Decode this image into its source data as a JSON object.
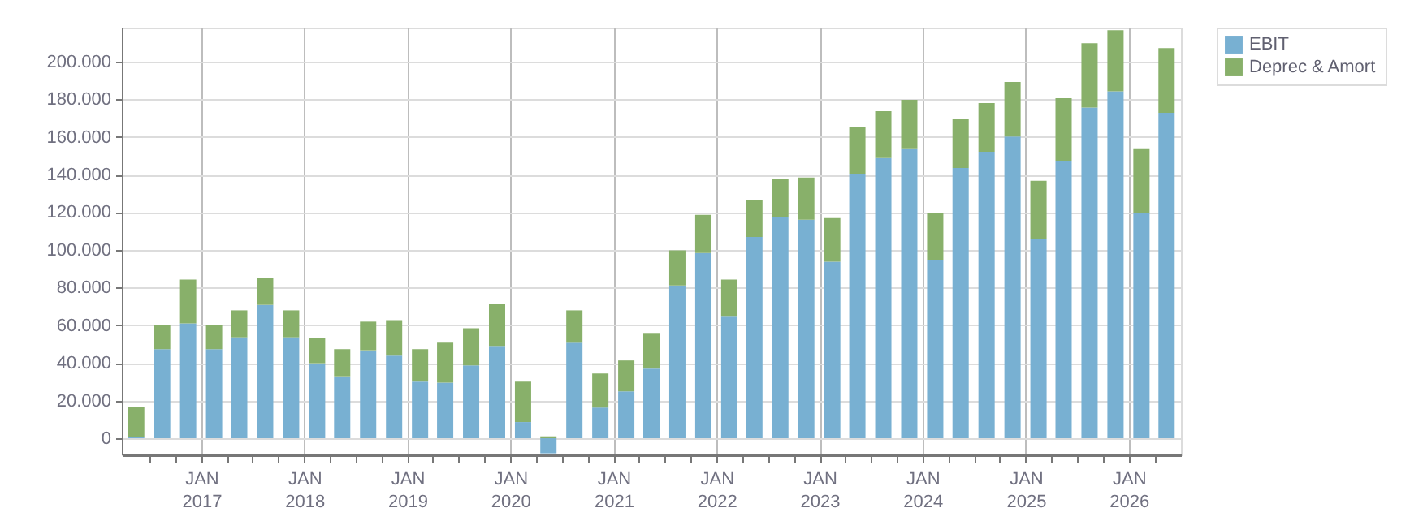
{
  "chart_data": {
    "type": "bar",
    "stacked": true,
    "grid": true,
    "legend": "top right",
    "x": [
      "2016-05-15",
      "2016-08-15",
      "2016-11-15",
      "2017-02-15",
      "2017-05-15",
      "2017-08-15",
      "2017-11-15",
      "2018-02-15",
      "2018-05-15",
      "2018-08-15",
      "2018-11-15",
      "2019-02-15",
      "2019-05-15",
      "2019-08-15",
      "2019-11-15",
      "2020-02-15",
      "2020-05-15",
      "2020-08-15",
      "2020-11-15",
      "2021-02-15",
      "2021-05-15",
      "2021-08-15",
      "2021-11-15",
      "2022-02-15",
      "2022-05-15",
      "2022-08-15",
      "2022-11-15",
      "2023-02-15",
      "2023-05-15",
      "2023-08-15",
      "2023-11-15",
      "2024-02-15",
      "2024-05-15",
      "2024-08-15",
      "2024-11-15",
      "2025-02-15",
      "2025-05-15",
      "2025-08-15",
      "2025-11-15",
      "2026-02-15",
      "2026-05-15"
    ],
    "xlim": [
      "2016-03-25",
      "2026-07-05"
    ],
    "xticks": [
      {
        "value": "2016-07-01",
        "label": null
      },
      {
        "value": "2016-10-01",
        "label": null
      },
      {
        "value": "2017-01-01",
        "label": "JAN 2017"
      },
      {
        "value": "2017-04-01",
        "label": null
      },
      {
        "value": "2017-07-01",
        "label": null
      },
      {
        "value": "2017-10-01",
        "label": null
      },
      {
        "value": "2018-01-01",
        "label": "JAN 2018"
      },
      {
        "value": "2018-04-01",
        "label": null
      },
      {
        "value": "2018-07-01",
        "label": null
      },
      {
        "value": "2018-10-01",
        "label": null
      },
      {
        "value": "2019-01-01",
        "label": "JAN 2019"
      },
      {
        "value": "2019-04-01",
        "label": null
      },
      {
        "value": "2019-07-01",
        "label": null
      },
      {
        "value": "2019-10-01",
        "label": null
      },
      {
        "value": "2020-01-01",
        "label": "JAN 2020"
      },
      {
        "value": "2020-04-01",
        "label": null
      },
      {
        "value": "2020-07-01",
        "label": null
      },
      {
        "value": "2020-10-01",
        "label": null
      },
      {
        "value": "2021-01-01",
        "label": "JAN 2021"
      },
      {
        "value": "2021-04-01",
        "label": null
      },
      {
        "value": "2021-07-01",
        "label": null
      },
      {
        "value": "2021-10-01",
        "label": null
      },
      {
        "value": "2022-01-01",
        "label": "JAN 2022"
      },
      {
        "value": "2022-04-01",
        "label": null
      },
      {
        "value": "2022-07-01",
        "label": null
      },
      {
        "value": "2022-10-01",
        "label": null
      },
      {
        "value": "2023-01-01",
        "label": "JAN 2023"
      },
      {
        "value": "2023-04-01",
        "label": null
      },
      {
        "value": "2023-07-01",
        "label": null
      },
      {
        "value": "2023-10-01",
        "label": null
      },
      {
        "value": "2024-01-01",
        "label": "JAN 2024"
      },
      {
        "value": "2024-04-01",
        "label": null
      },
      {
        "value": "2024-07-01",
        "label": null
      },
      {
        "value": "2024-10-01",
        "label": null
      },
      {
        "value": "2025-01-01",
        "label": "JAN 2025"
      },
      {
        "value": "2025-04-01",
        "label": null
      },
      {
        "value": "2025-07-01",
        "label": null
      },
      {
        "value": "2025-10-01",
        "label": null
      },
      {
        "value": "2026-01-01",
        "label": "JAN 2026"
      },
      {
        "value": "2026-04-01",
        "label": null
      }
    ],
    "ylim": [
      -8600,
      218000
    ],
    "yticks": [
      0,
      {
        "value": 20000,
        "label": "20.000"
      },
      {
        "value": 40000,
        "label": "40.000"
      },
      {
        "value": 60000,
        "label": "60.000"
      },
      {
        "value": 80000,
        "label": "80.000"
      },
      {
        "value": 100000,
        "label": "100.000"
      },
      {
        "value": 120000,
        "label": "120.000"
      },
      {
        "value": 140000,
        "label": "140.000"
      },
      {
        "value": 160000,
        "label": "160.000"
      },
      {
        "value": 180000,
        "label": "180.000"
      },
      {
        "value": 200000,
        "label": "200.000"
      }
    ],
    "series": [
      {
        "name": "EBIT",
        "color": "#78b0d2",
        "values": [
          500,
          47300,
          61000,
          47300,
          53600,
          70800,
          53600,
          39800,
          32900,
          46700,
          43800,
          30100,
          29500,
          38700,
          49000,
          8600,
          -8000,
          50700,
          16300,
          24900,
          37000,
          81100,
          98300,
          64500,
          106900,
          117200,
          116000,
          93700,
          140100,
          148700,
          153900,
          94800,
          143500,
          152100,
          160200,
          105700,
          147000,
          175600,
          184200,
          119500,
          172800
        ]
      },
      {
        "name": "Deprec & Amort",
        "color": "#88b06a",
        "values": [
          16100,
          12900,
          23200,
          12900,
          14300,
          14300,
          14300,
          13500,
          14400,
          15200,
          18900,
          17200,
          21200,
          19700,
          22300,
          21500,
          1000,
          17200,
          18100,
          16400,
          18900,
          18600,
          20300,
          19700,
          19400,
          20300,
          22400,
          23200,
          24900,
          24900,
          25800,
          24600,
          25800,
          25800,
          28900,
          31000,
          33500,
          34100,
          32400,
          34400,
          34300
        ]
      }
    ]
  }
}
